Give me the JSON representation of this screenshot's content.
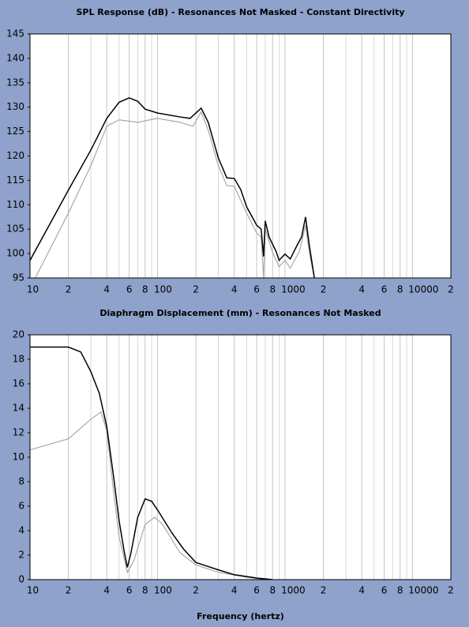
{
  "chart_data": [
    {
      "type": "line",
      "title": "SPL Response (dB) - Resonances Not Masked - Constant Directivity",
      "log_x": true,
      "xlim": [
        10,
        20000
      ],
      "ylim": [
        95,
        145
      ],
      "yticks": [
        95,
        100,
        105,
        110,
        115,
        120,
        125,
        130,
        135,
        140,
        145
      ],
      "xticks": [
        10,
        {
          "value": 20,
          "label": "2"
        },
        {
          "value": 40,
          "label": "4"
        },
        {
          "value": 60,
          "label": "6"
        },
        {
          "value": 80,
          "label": "8"
        },
        100,
        {
          "value": 200,
          "label": "2"
        },
        {
          "value": 400,
          "label": "4"
        },
        {
          "value": 600,
          "label": "6"
        },
        {
          "value": 800,
          "label": "8"
        },
        1000,
        {
          "value": 2000,
          "label": "2"
        },
        {
          "value": 4000,
          "label": "4"
        },
        {
          "value": 6000,
          "label": "6"
        },
        {
          "value": 8000,
          "label": "8"
        },
        10000,
        {
          "value": 20000,
          "label": "2"
        }
      ],
      "x_minor_grid": [
        30,
        50,
        70,
        90,
        300,
        500,
        700,
        900,
        3000,
        5000,
        7000,
        9000
      ],
      "series": [
        {
          "color": "#000000",
          "x": [
            10,
            20,
            30,
            40,
            50,
            60,
            70,
            80,
            100,
            150,
            180,
            210,
            220,
            250,
            300,
            350,
            400,
            450,
            500,
            600,
            650,
            680,
            700,
            750,
            850,
            900,
            1000,
            1100,
            1250,
            1350,
            1450,
            1550,
            1700
          ],
          "values": [
            98.6,
            113,
            121.2,
            127.7,
            131,
            131.9,
            131.2,
            129.6,
            128.8,
            128,
            127.7,
            129.3,
            129.8,
            126.9,
            119.6,
            115.5,
            115.4,
            113.1,
            109.6,
            105.8,
            105,
            99.4,
            106.7,
            103.4,
            100.5,
            98.6,
            99.9,
            98.9,
            101.8,
            103.4,
            107.5,
            101.8,
            95
          ]
        },
        {
          "color": "#a8a8a8",
          "x": [
            11,
            20,
            30,
            40,
            50,
            70,
            100,
            150,
            190,
            220,
            250,
            300,
            350,
            400,
            500,
            600,
            650,
            680,
            700,
            800,
            900,
            1000,
            1100,
            1300,
            1450,
            1550,
            1700
          ],
          "values": [
            95,
            108.3,
            118,
            126.1,
            127.4,
            126.9,
            127.7,
            126.9,
            126.1,
            129,
            125.3,
            118,
            113.9,
            113.8,
            108.3,
            104.2,
            103.4,
            95,
            105,
            100.2,
            97.3,
            98.6,
            97,
            100.5,
            105.8,
            100.2,
            95
          ]
        }
      ]
    },
    {
      "type": "line",
      "title": "Diaphragm Displacement (mm) - Resonances Not Masked",
      "xlabel": "Frequency (hertz)",
      "log_x": true,
      "xlim": [
        10,
        20000
      ],
      "ylim": [
        0,
        20
      ],
      "yticks": [
        0,
        2,
        4,
        6,
        8,
        10,
        12,
        14,
        16,
        18,
        20
      ],
      "xticks": [
        10,
        {
          "value": 20,
          "label": "2"
        },
        {
          "value": 40,
          "label": "4"
        },
        {
          "value": 60,
          "label": "6"
        },
        {
          "value": 80,
          "label": "8"
        },
        100,
        {
          "value": 200,
          "label": "2"
        },
        {
          "value": 400,
          "label": "4"
        },
        {
          "value": 600,
          "label": "6"
        },
        {
          "value": 800,
          "label": "8"
        },
        1000,
        {
          "value": 2000,
          "label": "2"
        },
        {
          "value": 4000,
          "label": "4"
        },
        {
          "value": 6000,
          "label": "6"
        },
        {
          "value": 8000,
          "label": "8"
        },
        10000,
        {
          "value": 20000,
          "label": "2"
        }
      ],
      "x_minor_grid": [
        30,
        50,
        70,
        90,
        300,
        500,
        700,
        900,
        3000,
        5000,
        7000,
        9000
      ],
      "series": [
        {
          "color": "#000000",
          "x": [
            10,
            20,
            25,
            30,
            35,
            40,
            45,
            50,
            55,
            58,
            62,
            70,
            80,
            90,
            100,
            130,
            160,
            200,
            300,
            400,
            600,
            800
          ],
          "values": [
            19,
            19,
            18.6,
            17,
            15.2,
            12.5,
            8.6,
            4.8,
            2.2,
            1,
            2.2,
            5.1,
            6.6,
            6.4,
            5.7,
            3.8,
            2.5,
            1.4,
            0.8,
            0.4,
            0.13,
            0
          ]
        },
        {
          "color": "#a8a8a8",
          "x": [
            10,
            20,
            30,
            36,
            40,
            45,
            50,
            58,
            65,
            80,
            95,
            110,
            150,
            200,
            300,
            500,
            700
          ],
          "values": [
            10.6,
            11.5,
            13.1,
            13.7,
            12.2,
            7.4,
            3.5,
            0.6,
            1.5,
            4.5,
            5.1,
            4.5,
            2.2,
            1.2,
            0.6,
            0.2,
            0
          ]
        }
      ]
    }
  ]
}
